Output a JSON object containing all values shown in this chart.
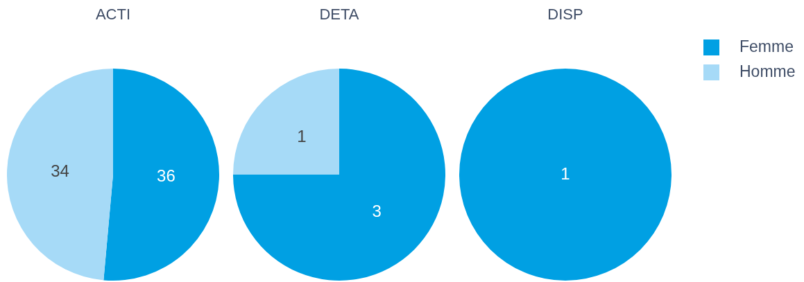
{
  "chart_data": [
    {
      "type": "pie",
      "title": "ACTI",
      "categories": [
        null,
        null
      ],
      "values": [
        36,
        34
      ],
      "colors": [
        "#00a0e3",
        "#a6daf7"
      ],
      "data_labels": true
    },
    {
      "type": "pie",
      "title": "DETA",
      "categories": [
        null,
        null
      ],
      "values": [
        3,
        1
      ],
      "colors": [
        "#00a0e3",
        "#a6daf7"
      ],
      "data_labels": true
    },
    {
      "type": "pie",
      "title": "DISP",
      "categories": [
        "Femme",
        "Homme"
      ],
      "values": [
        1,
        null
      ],
      "colors": [
        "#00a0e3",
        "#a6daf7"
      ],
      "data_labels": true,
      "legend": "top right"
    }
  ]
}
